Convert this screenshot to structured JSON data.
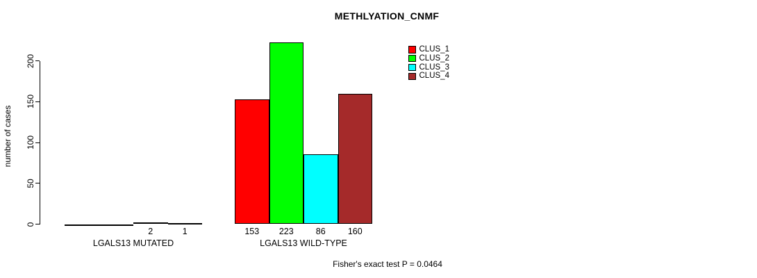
{
  "page": {
    "background": "#FFFFFF",
    "text_color": "#000000",
    "axis_color": "#000000"
  },
  "chart_data": {
    "type": "bar",
    "title": "METHLYATION_CNMF",
    "ylabel": "number of cases",
    "xlabel": "",
    "yticks": [
      0,
      50,
      100,
      150,
      200
    ],
    "ylim": [
      0,
      230
    ],
    "grid": false,
    "legend_position": "top-right",
    "series": [
      {
        "name": "CLUS_1",
        "color": "#FF0000"
      },
      {
        "name": "CLUS_2",
        "color": "#00FF00"
      },
      {
        "name": "CLUS_3",
        "color": "#00FFFF"
      },
      {
        "name": "CLUS_4",
        "color": "#A52A2A"
      }
    ],
    "groups": [
      {
        "label": "LGALS13 MUTATED",
        "values": [
          0,
          0,
          2,
          1
        ],
        "bar_labels": [
          "",
          "",
          "2",
          "1"
        ]
      },
      {
        "label": "LGALS13 WILD-TYPE",
        "values": [
          153,
          223,
          86,
          160
        ],
        "bar_labels": [
          "153",
          "223",
          "86",
          "160"
        ]
      }
    ],
    "footnote": "Fisher's exact test P = 0.0464"
  }
}
